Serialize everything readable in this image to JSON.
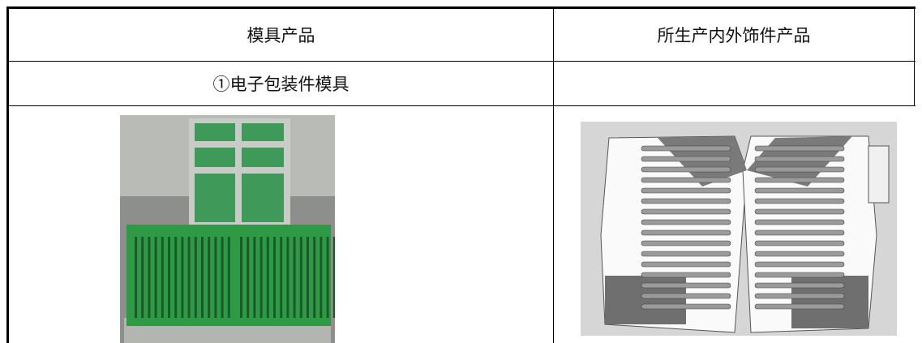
{
  "table": {
    "header": [
      "模具产品",
      "所生产内外饰件产品"
    ],
    "rows": [
      [
        "①电子包装件模具"
      ]
    ]
  }
}
